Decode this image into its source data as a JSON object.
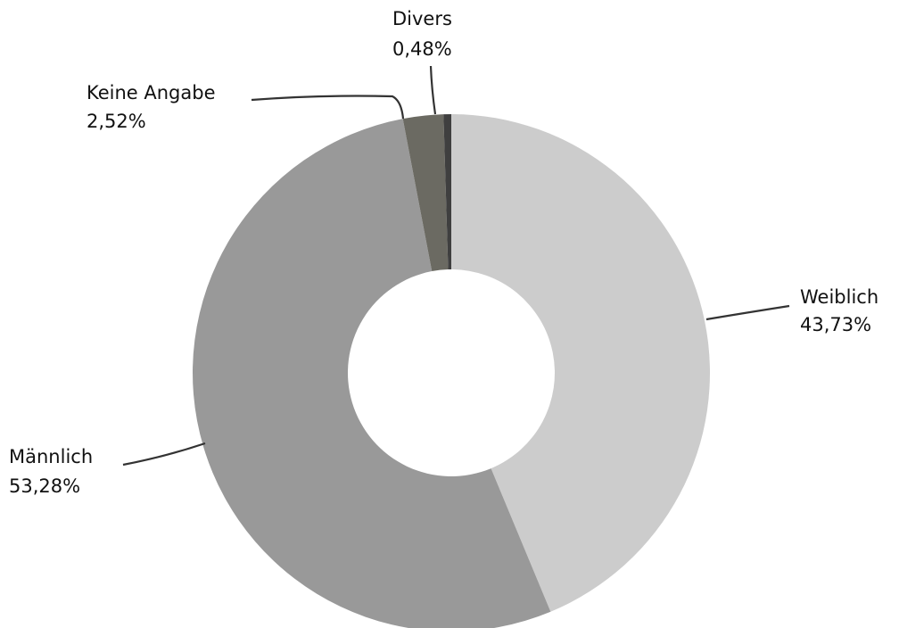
{
  "chart_data": {
    "type": "pie",
    "donut": true,
    "slices": [
      {
        "label": "Weiblich",
        "value": 43.73,
        "value_text": "43,73%",
        "color": "#cccccc"
      },
      {
        "label": "Männlich",
        "value": 53.28,
        "value_text": "53,28%",
        "color": "#999999"
      },
      {
        "label": "Keine Angabe",
        "value": 2.52,
        "value_text": "2,52%",
        "color": "#6b6a62"
      },
      {
        "label": "Divers",
        "value": 0.48,
        "value_text": "0,48%",
        "color": "#3f3f3f"
      }
    ],
    "legend": "none",
    "background": "#ffffff"
  }
}
